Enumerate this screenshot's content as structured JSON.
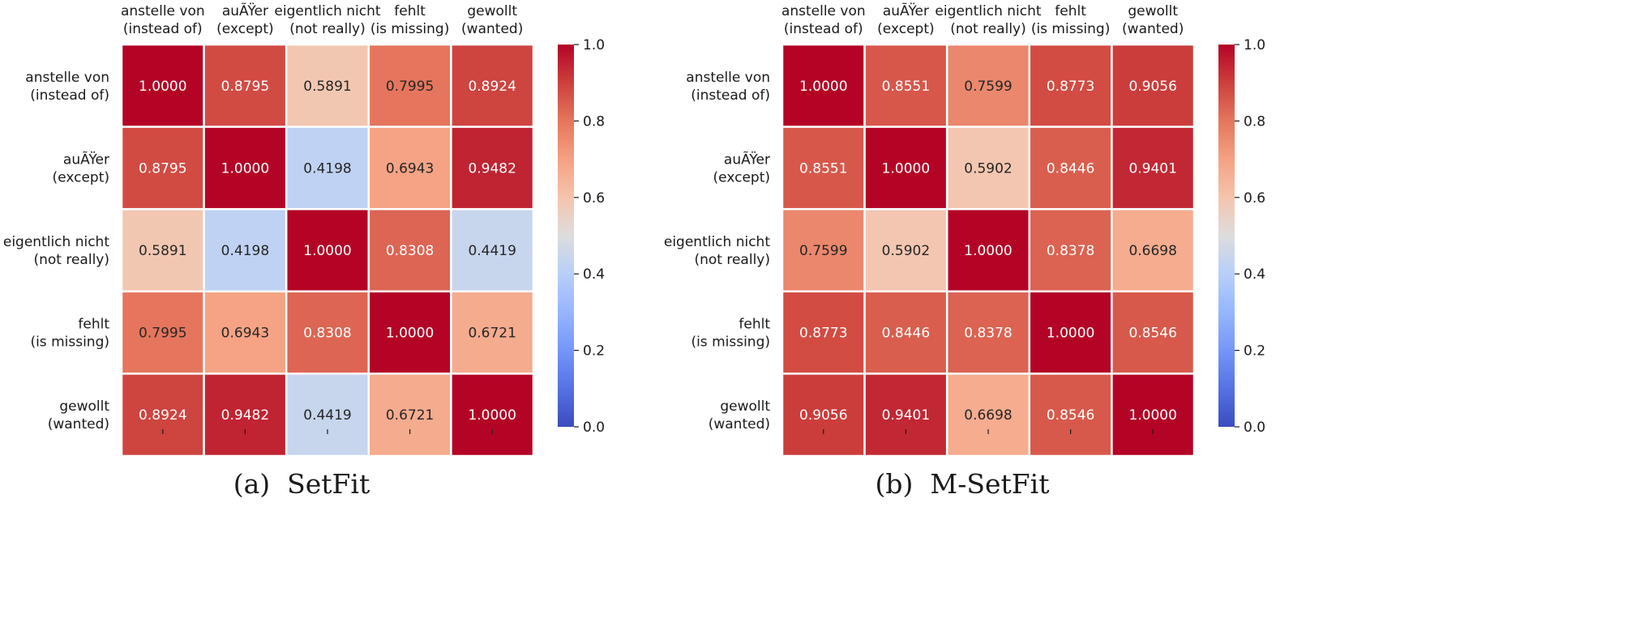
{
  "chart_data": [
    {
      "type": "heatmap",
      "caption": "(a)  SetFit",
      "x_labels": [
        [
          "anstelle von",
          "(instead of)"
        ],
        [
          "auÃŸer",
          "(except)"
        ],
        [
          "eigentlich nicht",
          "(not really)"
        ],
        [
          "fehlt",
          "(is missing)"
        ],
        [
          "gewollt",
          "(wanted)"
        ]
      ],
      "y_labels": [
        [
          "anstelle von",
          "(instead of)"
        ],
        [
          "auÃŸer",
          "(except)"
        ],
        [
          "eigentlich nicht",
          "(not really)"
        ],
        [
          "fehlt",
          "(is missing)"
        ],
        [
          "gewollt",
          "(wanted)"
        ]
      ],
      "values": [
        [
          1.0,
          0.8795,
          0.5891,
          0.7995,
          0.8924
        ],
        [
          0.8795,
          1.0,
          0.4198,
          0.6943,
          0.9482
        ],
        [
          0.5891,
          0.4198,
          1.0,
          0.8308,
          0.4419
        ],
        [
          0.7995,
          0.6943,
          0.8308,
          1.0,
          0.6721
        ],
        [
          0.8924,
          0.9482,
          0.4419,
          0.6721,
          1.0
        ]
      ],
      "colorbar": {
        "range": [
          0.0,
          1.0
        ],
        "ticks": [
          "0.0",
          "0.2",
          "0.4",
          "0.6",
          "0.8",
          "1.0"
        ]
      },
      "colormap": "coolwarm",
      "value_format": "4 decimals"
    },
    {
      "type": "heatmap",
      "caption": "(b)  M-SetFit",
      "x_labels": [
        [
          "anstelle von",
          "(instead of)"
        ],
        [
          "auÃŸer",
          "(except)"
        ],
        [
          "eigentlich nicht",
          "(not really)"
        ],
        [
          "fehlt",
          "(is missing)"
        ],
        [
          "gewollt",
          "(wanted)"
        ]
      ],
      "y_labels": [
        [
          "anstelle von",
          "(instead of)"
        ],
        [
          "auÃŸer",
          "(except)"
        ],
        [
          "eigentlich nicht",
          "(not really)"
        ],
        [
          "fehlt",
          "(is missing)"
        ],
        [
          "gewollt",
          "(wanted)"
        ]
      ],
      "values": [
        [
          1.0,
          0.8551,
          0.7599,
          0.8773,
          0.9056
        ],
        [
          0.8551,
          1.0,
          0.5902,
          0.8446,
          0.9401
        ],
        [
          0.7599,
          0.5902,
          1.0,
          0.8378,
          0.6698
        ],
        [
          0.8773,
          0.8446,
          0.8378,
          1.0,
          0.8546
        ],
        [
          0.9056,
          0.9401,
          0.6698,
          0.8546,
          1.0
        ]
      ],
      "colorbar": {
        "range": [
          0.0,
          1.0
        ],
        "ticks": [
          "0.0",
          "0.2",
          "0.4",
          "0.6",
          "0.8",
          "1.0"
        ]
      },
      "colormap": "coolwarm",
      "value_format": "4 decimals"
    }
  ],
  "colors": {
    "cell_border": "#ffffff",
    "text_dark": "#262626",
    "text_light": "#ffffff",
    "axis_text": "#1a1a1a"
  }
}
